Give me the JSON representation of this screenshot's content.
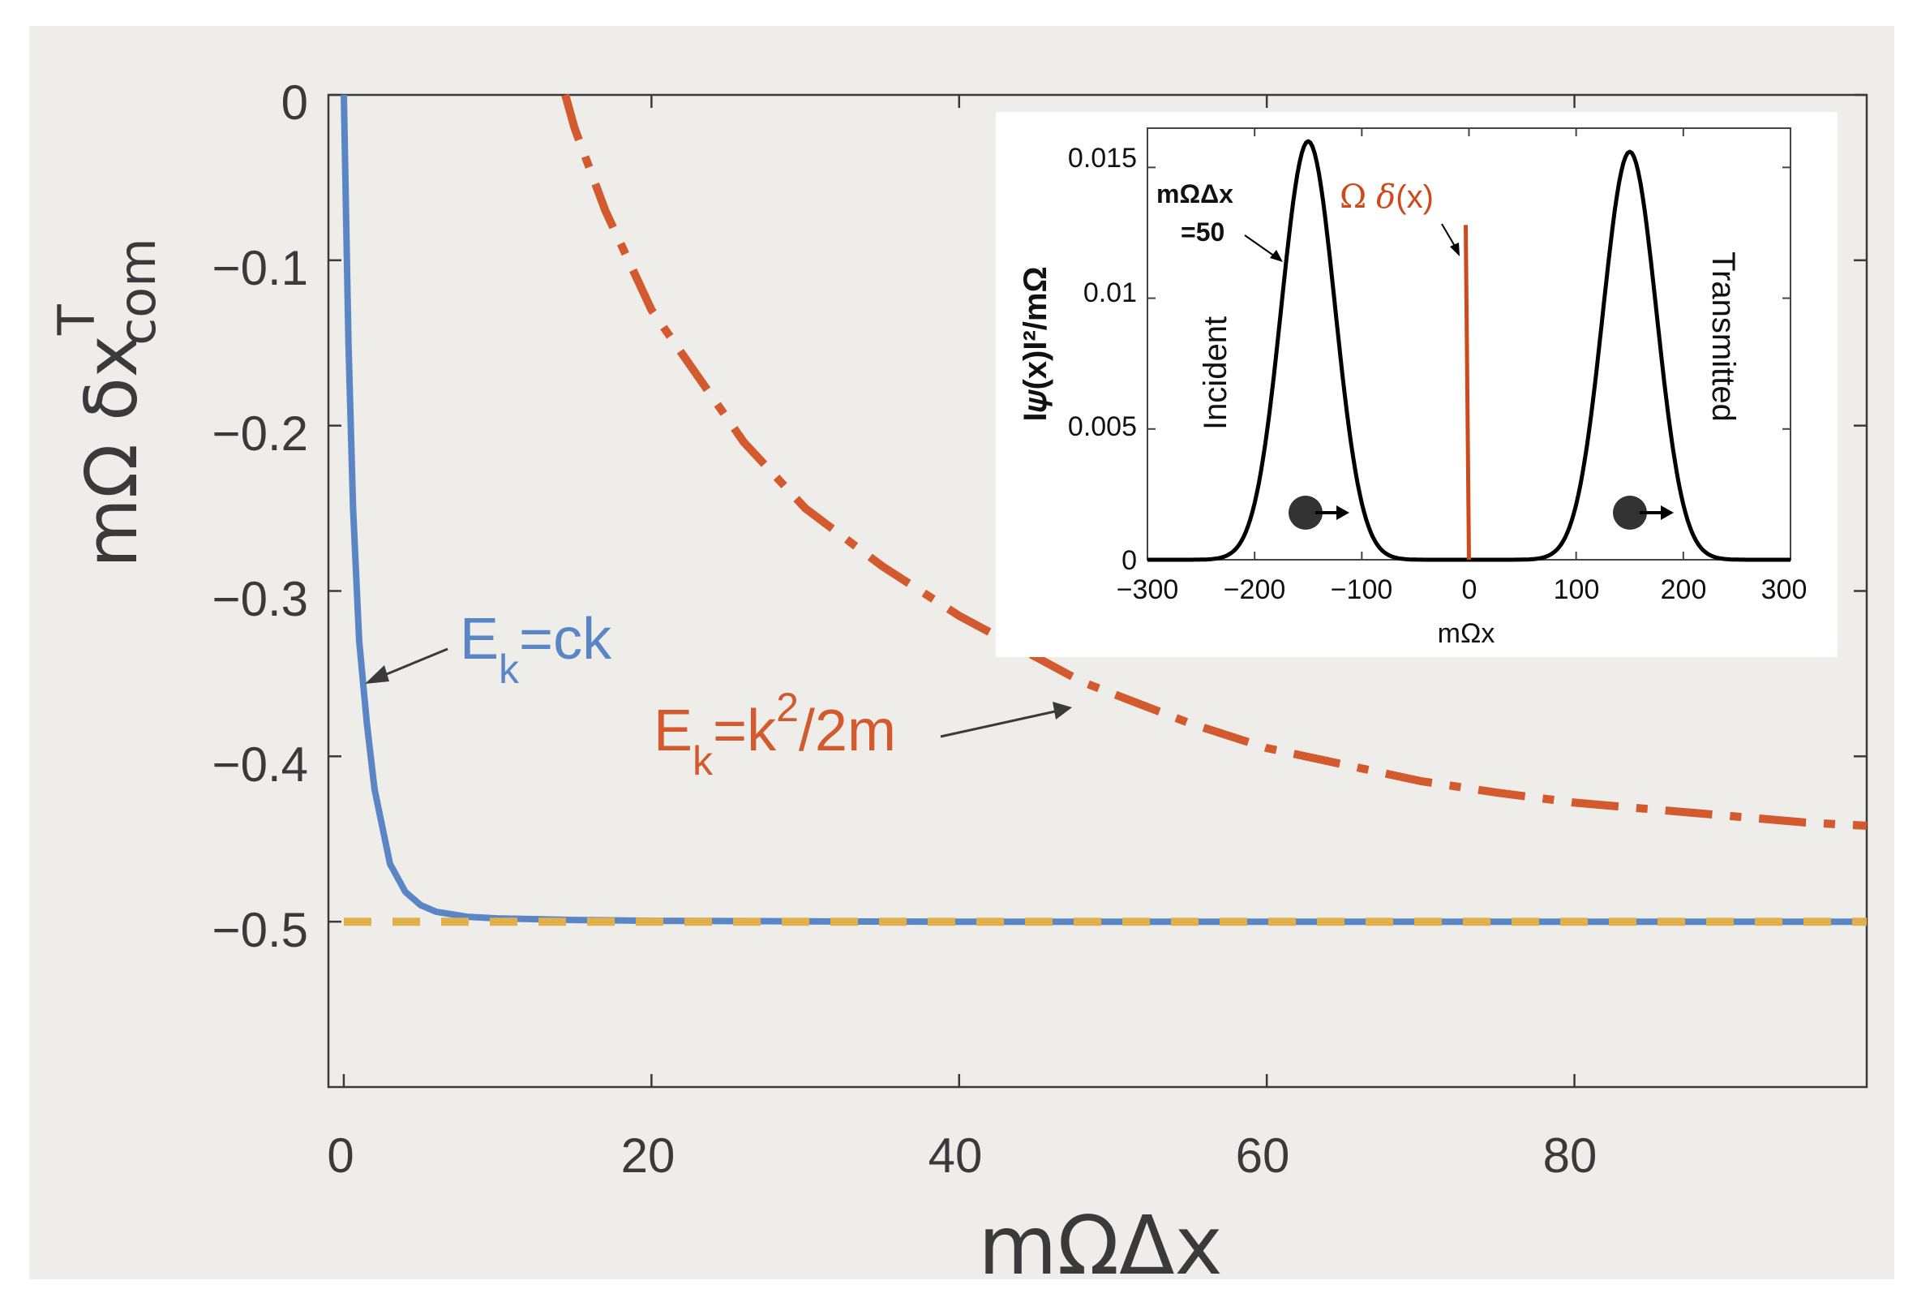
{
  "colors": {
    "background": "#efedea",
    "axes": "#3a3a3a",
    "blue": "#5b86c5",
    "orange": "#d25a2e",
    "yellow": "#e2b04a",
    "inset_red": "#cc4a1e",
    "black": "#000000"
  },
  "chart_data": [
    {
      "type": "line",
      "xlabel": "mΩΔx",
      "ylabel": {
        "prefix": "mΩ δx",
        "superscript": "T",
        "subscript": "com"
      },
      "xlim": [
        -1,
        99
      ],
      "ylim": [
        -0.6,
        0
      ],
      "x_ticks": [
        0,
        20,
        40,
        60,
        80
      ],
      "y_ticks": [
        0,
        -0.1,
        -0.2,
        -0.3,
        -0.4,
        -0.5
      ],
      "x_tick_labels": [
        "0",
        "20",
        "40",
        "60",
        "80"
      ],
      "y_tick_labels": [
        "0",
        "−0.1",
        "−0.2",
        "−0.3",
        "−0.4",
        "−0.5"
      ],
      "series": [
        {
          "name": "E_k=ck",
          "style": "solid",
          "color": "#5b86c5",
          "x": [
            0,
            0.3,
            0.6,
            1,
            1.5,
            2,
            3,
            4,
            5,
            6,
            8,
            10,
            15,
            20,
            30,
            40,
            60,
            80,
            99
          ],
          "y": [
            0,
            -0.15,
            -0.25,
            -0.33,
            -0.38,
            -0.42,
            -0.465,
            -0.482,
            -0.49,
            -0.494,
            -0.497,
            -0.498,
            -0.499,
            -0.4995,
            -0.4998,
            -0.5,
            -0.5,
            -0.5,
            -0.5
          ]
        },
        {
          "name": "E_k=k^2/2m",
          "style": "dashdot",
          "color": "#d25a2e",
          "x": [
            14.4,
            15,
            17,
            20,
            23,
            26,
            30,
            35,
            40,
            45,
            48,
            55,
            60,
            65,
            70,
            75,
            80,
            85,
            90,
            95,
            99
          ],
          "y": [
            0,
            -0.02,
            -0.07,
            -0.13,
            -0.17,
            -0.21,
            -0.25,
            -0.285,
            -0.315,
            -0.34,
            -0.355,
            -0.38,
            -0.395,
            -0.405,
            -0.415,
            -0.422,
            -0.428,
            -0.432,
            -0.436,
            -0.44,
            -0.442
          ]
        },
        {
          "name": "-0.5 limit",
          "style": "dashed",
          "color": "#e2b04a",
          "x": [
            0,
            99
          ],
          "y": [
            -0.5,
            -0.5
          ]
        }
      ],
      "annotations": [
        {
          "label": {
            "main": "E",
            "sub": "k",
            "rest": "=ck"
          },
          "arrow_to": {
            "x": 1.5,
            "y": -0.355
          }
        },
        {
          "label": {
            "main": "E",
            "sub": "k",
            "rest1": "=k",
            "sup": "2",
            "rest2": "/2m"
          },
          "arrow_to": {
            "x": 48,
            "y": -0.37
          }
        }
      ]
    },
    {
      "type": "line",
      "inset": true,
      "xlabel": "mΩx",
      "ylabel": "I𝜓(x)I²/mΩ",
      "xlim": [
        -300,
        300
      ],
      "ylim": [
        0,
        0.0165
      ],
      "x_ticks": [
        -300,
        -200,
        -100,
        0,
        100,
        200,
        300
      ],
      "y_ticks": [
        0,
        0.005,
        0.01,
        0.015
      ],
      "x_tick_labels": [
        "−300",
        "−200",
        "−100",
        "0",
        "100",
        "200",
        "300"
      ],
      "y_tick_labels": [
        "0",
        "0.005",
        "0.01",
        "0.015"
      ],
      "series": [
        {
          "name": "Incident",
          "type": "gaussian",
          "center": -150,
          "sigma": 25,
          "amplitude": 0.016,
          "color": "#000000"
        },
        {
          "name": "Transmitted",
          "type": "gaussian",
          "center": 150,
          "sigma": 25,
          "amplitude": 0.0156,
          "color": "#000000"
        },
        {
          "name": "Ω δ(x)",
          "type": "impulse",
          "x": 0,
          "height": 0.0128,
          "color": "#cc4a1e"
        }
      ],
      "annotations": {
        "param_line1": "mΩΔx",
        "param_line2": "=50",
        "incident": "Incident",
        "transmitted": "Transmitted",
        "delta_label_omega": "Ω",
        "delta_label_delta": "δ",
        "delta_label_x": "(x)"
      }
    }
  ]
}
